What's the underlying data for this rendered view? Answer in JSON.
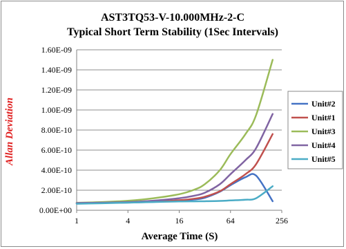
{
  "chart_data": {
    "type": "line",
    "title": "AST3TQ53-V-10.000MHz-2-C",
    "subtitle": "Typical Short Term Stability (1Sec Intervals)",
    "xlabel": "Average Time (S)",
    "ylabel": "Allan Deviation",
    "x_scale": "log2",
    "x_ticks": [
      "1",
      "4",
      "16",
      "64",
      "256"
    ],
    "y_ticks": [
      "0.00E+00",
      "2.00E-10",
      "4.00E-10",
      "6.00E-10",
      "8.00E-10",
      "1.00E-09",
      "1.20E-09",
      "1.40E-09",
      "1.60E-09"
    ],
    "xlim": [
      1,
      256
    ],
    "ylim": [
      0,
      1.6e-09
    ],
    "grid": "horizontal",
    "legend_position": "right",
    "x": [
      1,
      2,
      4,
      8,
      16,
      24,
      32,
      48,
      64,
      96,
      128,
      200
    ],
    "series": [
      {
        "name": "Unit#2",
        "color": "#4472C4",
        "values": [
          7e-11,
          7.3e-11,
          7.7e-11,
          8.4e-11,
          9.6e-11,
          1.08e-10,
          1.25e-10,
          1.85e-10,
          2.5e-10,
          3.3e-10,
          3.45e-10,
          9e-11
        ]
      },
      {
        "name": "Unit#1",
        "color": "#C0504D",
        "values": [
          7e-11,
          7.3e-11,
          7.8e-11,
          8.6e-11,
          1e-10,
          1.15e-10,
          1.35e-10,
          1.9e-10,
          2.6e-10,
          3.6e-10,
          4.6e-10,
          7.6e-10
        ]
      },
      {
        "name": "Unit#3",
        "color": "#9BBB59",
        "values": [
          7.5e-11,
          8.2e-11,
          9.5e-11,
          1.2e-10,
          1.6e-10,
          2.05e-10,
          2.6e-10,
          4e-10,
          5.6e-10,
          7.6e-10,
          9.5e-10,
          1.5e-09
        ]
      },
      {
        "name": "Unit#4",
        "color": "#8064A2",
        "values": [
          7.2e-11,
          7.6e-11,
          8.2e-11,
          9.6e-11,
          1.2e-10,
          1.45e-10,
          1.75e-10,
          2.6e-10,
          3.6e-10,
          5e-10,
          6.2e-10,
          9.6e-10
        ]
      },
      {
        "name": "Unit#5",
        "color": "#4BACC6",
        "values": [
          6.5e-11,
          7e-11,
          7.6e-11,
          8.2e-11,
          8.8e-11,
          8.9e-11,
          9e-11,
          9.3e-11,
          9.8e-11,
          1.05e-10,
          1.2e-10,
          2.4e-10
        ]
      }
    ]
  }
}
